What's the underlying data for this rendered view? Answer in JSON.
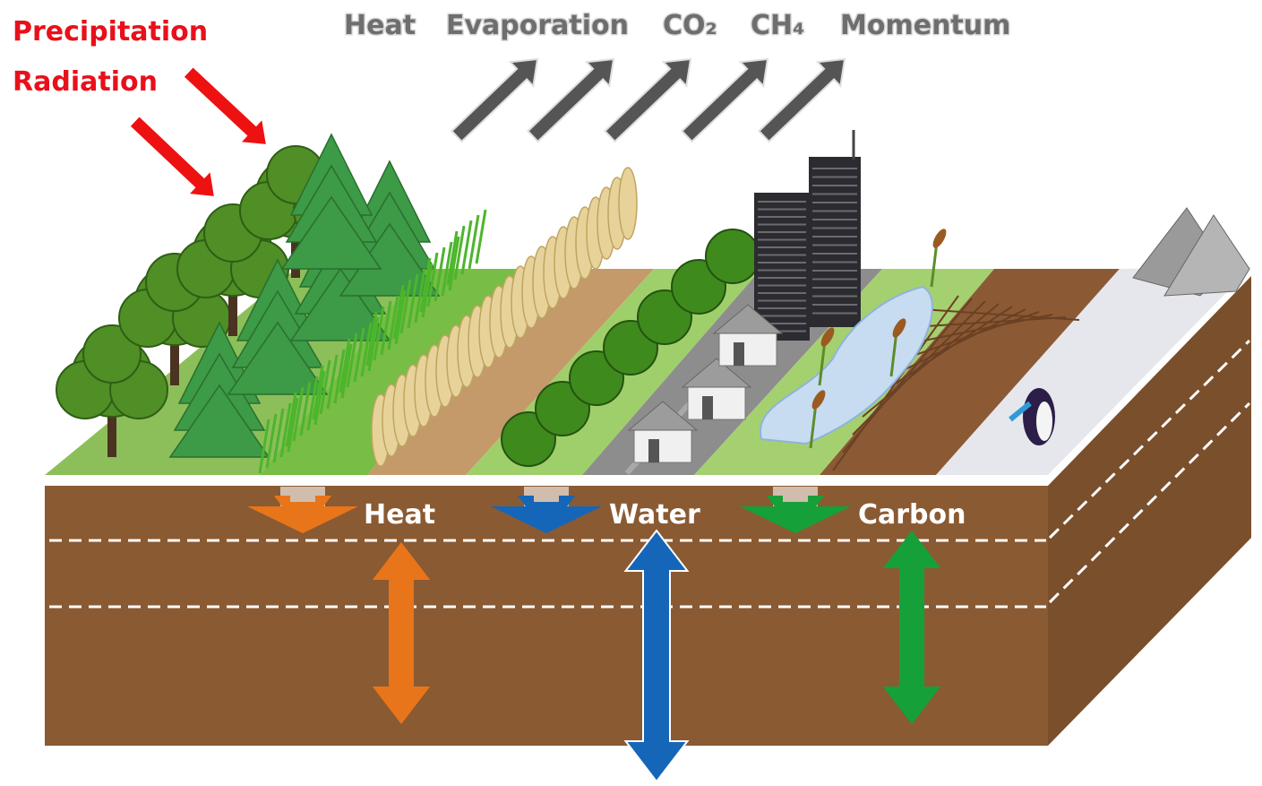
{
  "inputs": [
    "Precipitation",
    "Radiation"
  ],
  "outputs": [
    "Heat",
    "Evaporation",
    "CO₂",
    "CH₄",
    "Momentum"
  ],
  "soil_fluxes": [
    "Heat",
    "Water",
    "Carbon"
  ]
}
